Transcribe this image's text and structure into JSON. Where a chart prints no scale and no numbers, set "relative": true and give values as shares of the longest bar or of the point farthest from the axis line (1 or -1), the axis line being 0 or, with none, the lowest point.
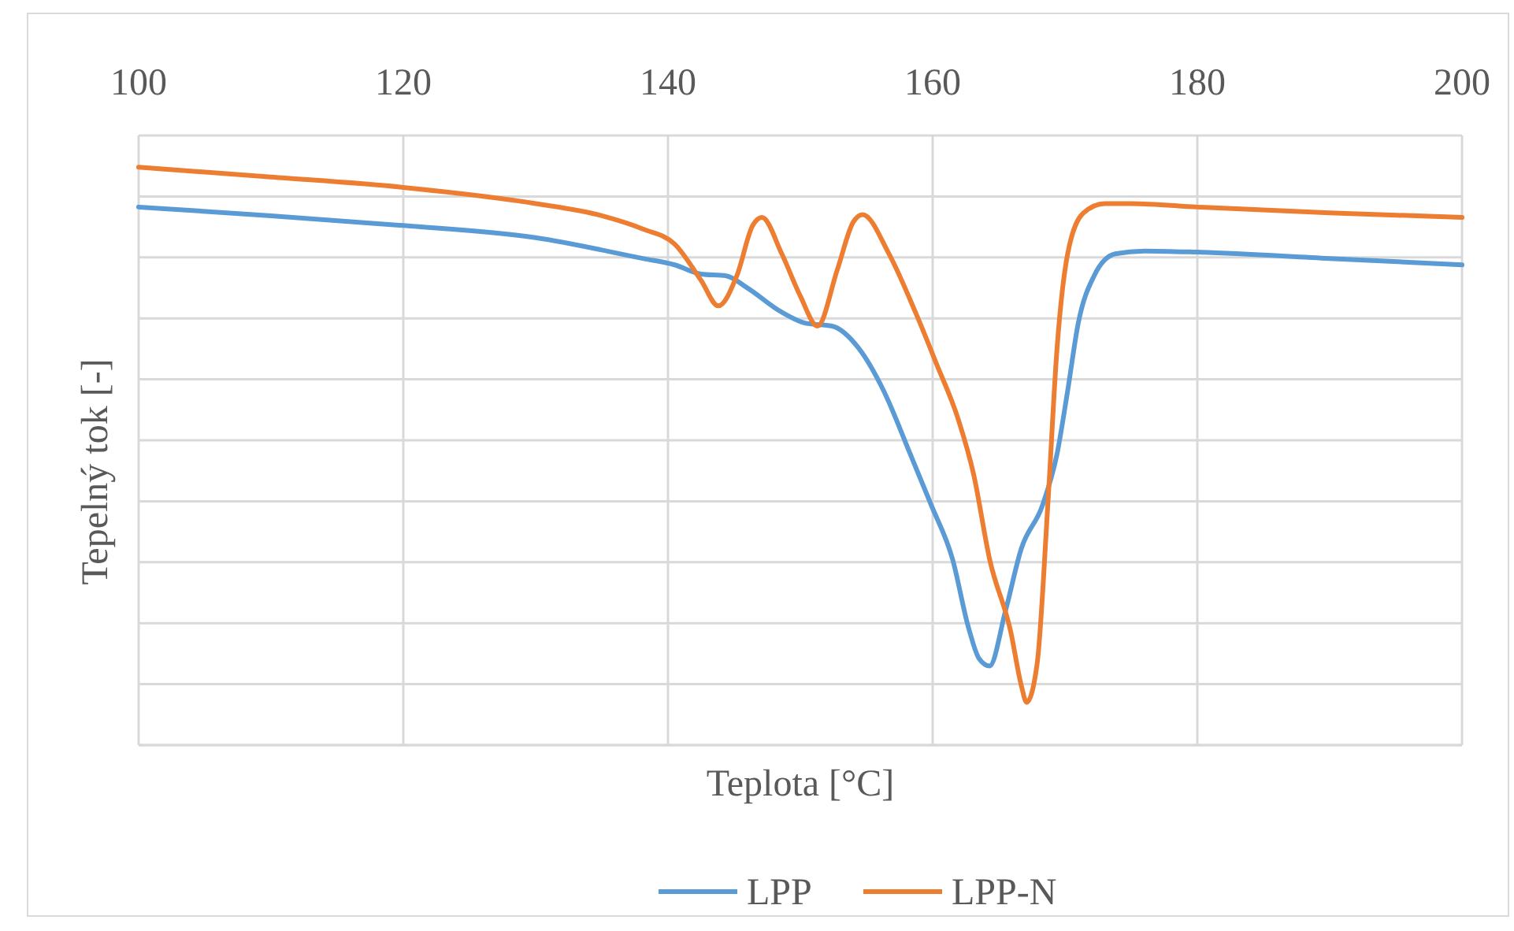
{
  "chart_data": {
    "type": "line",
    "relative": true,
    "xlabel": "Teplota [°C]",
    "ylabel": "Tepelný tok [-]",
    "xlim": [
      100,
      200
    ],
    "xticks": [
      100,
      120,
      140,
      160,
      180,
      200
    ],
    "grid": true,
    "legend": "bottom",
    "marker": "none",
    "line_style": "solid",
    "series": [
      {
        "name": "LPP",
        "color": "#5b9bd5",
        "x": [
          100,
          110,
          120,
          130,
          138.1,
          140.5,
          142.5,
          144.4,
          146,
          148.6,
          150.4,
          152.4,
          154.4,
          156.3,
          158.3,
          159.9,
          161.5,
          162.7,
          163.5,
          164.3,
          165.5,
          166.7,
          168.3,
          169.4,
          170.2,
          171,
          172.2,
          173.8,
          176,
          180,
          190,
          200
        ],
        "values": [
          0.931,
          0.916,
          0.899,
          0.878,
          0.842,
          0.831,
          0.815,
          0.812,
          0.791,
          0.749,
          0.73,
          0.725,
          0.687,
          0.613,
          0.504,
          0.415,
          0.322,
          0.204,
          0.15,
          0.137,
          0.232,
          0.34,
          0.415,
          0.504,
          0.613,
          0.73,
          0.812,
          0.85,
          0.855,
          0.853,
          0.842,
          0.831
        ]
      },
      {
        "name": "LPP-N",
        "color": "#ed7d31",
        "x": [
          100,
          110,
          120,
          130,
          135,
          138.1,
          140.5,
          142.5,
          143.8,
          145.2,
          146.4,
          147.1,
          148.6,
          150,
          151.3,
          152.8,
          154,
          154.7,
          156.7,
          158.7,
          160.3,
          161.9,
          163.1,
          164.3,
          165.9,
          166.7,
          167.1,
          167.9,
          168.7,
          169.4,
          170.2,
          171.4,
          173,
          175,
          180,
          190,
          200
        ],
        "values": [
          1.0,
          0.983,
          0.965,
          0.937,
          0.916,
          0.893,
          0.867,
          0.804,
          0.76,
          0.812,
          0.899,
          0.913,
          0.85,
          0.777,
          0.725,
          0.823,
          0.905,
          0.918,
          0.85,
          0.749,
          0.659,
          0.566,
          0.468,
          0.322,
          0.196,
          0.103,
          0.074,
          0.142,
          0.415,
          0.687,
          0.85,
          0.921,
          0.937,
          0.937,
          0.931,
          0.921,
          0.913
        ]
      }
    ]
  }
}
